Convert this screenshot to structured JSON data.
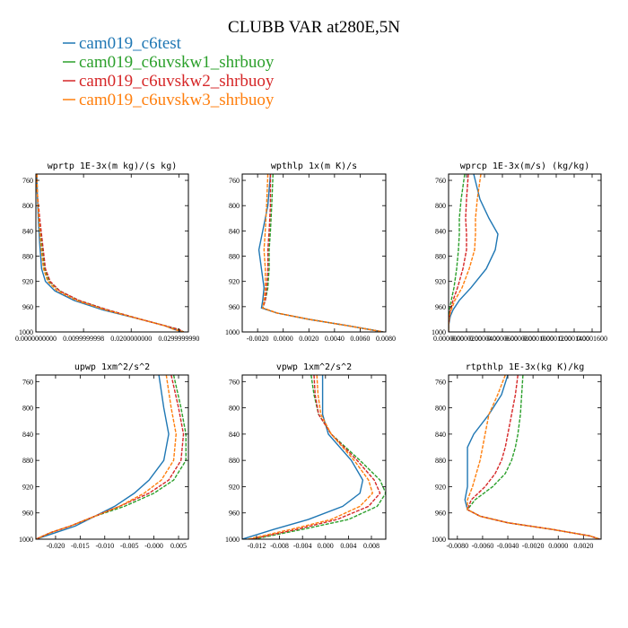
{
  "title": "CLUBB VAR at280E,5N",
  "legend": [
    {
      "name": "cam019_c6test",
      "color": "#1f77b4"
    },
    {
      "name": "cam019_c6uvskw1_shrbuoy",
      "color": "#2ca02c"
    },
    {
      "name": "cam019_c6uvskw2_shrbuoy",
      "color": "#d62728"
    },
    {
      "name": "cam019_c6uvskw3_shrbuoy",
      "color": "#ff7f0e"
    }
  ],
  "chart_data": [
    {
      "type": "line",
      "title": "wprtp  1E-3x(m kg)/(s kg)",
      "xlim": [
        0,
        0.032
      ],
      "ylim": [
        1000,
        750
      ],
      "x_ticks": [
        0.0,
        0.01,
        0.02,
        0.03
      ],
      "x_tick_labels": [
        "0.0000000000",
        "0.0099999998",
        "0.0200000000",
        "0.0299999990"
      ],
      "y_ticks": [
        760,
        800,
        840,
        880,
        920,
        960,
        1000
      ],
      "y_tick_labels": [
        "760",
        "800",
        "840",
        "880",
        "920",
        "960",
        "1000"
      ],
      "series": [
        {
          "name": "cam019_c6test",
          "y": [
            750,
            780,
            820,
            860,
            900,
            920,
            935,
            950,
            965,
            980,
            990,
            996,
            1000
          ],
          "x": [
            0.0002,
            0.0003,
            0.0005,
            0.0008,
            0.0012,
            0.002,
            0.004,
            0.008,
            0.014,
            0.022,
            0.027,
            0.029,
            0.031
          ]
        },
        {
          "name": "cam019_c6uvskw1_shrbuoy",
          "y": [
            750,
            780,
            820,
            860,
            900,
            920,
            935,
            950,
            965,
            980,
            990,
            996,
            1000
          ],
          "x": [
            0.0002,
            0.0003,
            0.0007,
            0.0012,
            0.0018,
            0.0028,
            0.005,
            0.009,
            0.015,
            0.022,
            0.027,
            0.03,
            0.031
          ]
        },
        {
          "name": "cam019_c6uvskw2_shrbuoy",
          "y": [
            750,
            780,
            820,
            860,
            900,
            920,
            935,
            950,
            965,
            980,
            990,
            996,
            1000
          ],
          "x": [
            0.0002,
            0.0003,
            0.0008,
            0.0014,
            0.002,
            0.003,
            0.005,
            0.009,
            0.015,
            0.022,
            0.027,
            0.03,
            0.031
          ]
        },
        {
          "name": "cam019_c6uvskw3_shrbuoy",
          "y": [
            750,
            780,
            820,
            860,
            900,
            920,
            935,
            950,
            965,
            980,
            990,
            996,
            1000
          ],
          "x": [
            0.0002,
            0.0003,
            0.0006,
            0.001,
            0.0016,
            0.0025,
            0.0045,
            0.0085,
            0.0145,
            0.022,
            0.027,
            0.029,
            0.031
          ]
        }
      ]
    },
    {
      "type": "line",
      "title": "wpthlp  1x(m K)/s",
      "xlim": [
        -0.0032,
        0.008
      ],
      "ylim": [
        1000,
        750
      ],
      "x_ticks": [
        -0.002,
        0.0,
        0.002,
        0.004,
        0.006,
        0.008
      ],
      "x_tick_labels": [
        "-0.0020",
        "0.0000",
        "0.0020",
        "0.0040",
        "0.0060",
        "0.0080"
      ],
      "y_ticks": [
        760,
        800,
        840,
        880,
        920,
        960,
        1000
      ],
      "y_tick_labels": [
        "760",
        "800",
        "840",
        "880",
        "920",
        "960",
        "1000"
      ],
      "series": [
        {
          "name": "cam019_c6test",
          "y": [
            750,
            800,
            840,
            870,
            900,
            930,
            950,
            962,
            970,
            980,
            990,
            1000
          ],
          "x": [
            -0.001,
            -0.0012,
            -0.0016,
            -0.0019,
            -0.0017,
            -0.0015,
            -0.0016,
            -0.0017,
            -0.0005,
            0.002,
            0.005,
            0.0078
          ]
        },
        {
          "name": "cam019_c6uvskw1_shrbuoy",
          "y": [
            750,
            800,
            840,
            870,
            900,
            930,
            950,
            962,
            970,
            980,
            990,
            1000
          ],
          "x": [
            -0.0008,
            -0.0009,
            -0.001,
            -0.0011,
            -0.0011,
            -0.0012,
            -0.0014,
            -0.0016,
            -0.0005,
            0.002,
            0.005,
            0.0078
          ]
        },
        {
          "name": "cam019_c6uvskw2_shrbuoy",
          "y": [
            750,
            800,
            840,
            870,
            900,
            930,
            950,
            962,
            970,
            980,
            990,
            1000
          ],
          "x": [
            -0.001,
            -0.001,
            -0.0011,
            -0.0012,
            -0.0012,
            -0.0013,
            -0.0014,
            -0.0016,
            -0.0005,
            0.002,
            0.005,
            0.0078
          ]
        },
        {
          "name": "cam019_c6uvskw3_shrbuoy",
          "y": [
            750,
            800,
            840,
            870,
            900,
            930,
            950,
            962,
            970,
            980,
            990,
            1000
          ],
          "x": [
            -0.0012,
            -0.0013,
            -0.0014,
            -0.0015,
            -0.0014,
            -0.0014,
            -0.0015,
            -0.0016,
            -0.0005,
            0.002,
            0.005,
            0.0078
          ]
        }
      ]
    },
    {
      "type": "line",
      "title": "wprcp  1E-3x(m/s) (kg/kg)",
      "xlim": [
        0,
        0.00017
      ],
      "ylim": [
        1000,
        750
      ],
      "x_ticks": [
        0.0,
        2e-05,
        4e-05,
        6e-05,
        8e-05,
        0.0001,
        0.00012,
        0.00014,
        0.00016
      ],
      "x_tick_labels": [
        "0.0000000",
        "0.0000200",
        "0.0000400",
        "0.0000600",
        "0.0000800",
        "0.0001000",
        "0.0001200",
        "0.0001400",
        "0.0001600"
      ],
      "y_ticks": [
        760,
        800,
        840,
        880,
        920,
        960,
        1000
      ],
      "y_tick_labels": [
        "760",
        "800",
        "840",
        "880",
        "920",
        "960",
        "1000"
      ],
      "series": [
        {
          "name": "cam019_c6test",
          "y": [
            750,
            790,
            820,
            845,
            870,
            900,
            930,
            950,
            965,
            975,
            990,
            1000
          ],
          "x": [
            2.8e-05,
            3.5e-05,
            4.5e-05,
            5.5e-05,
            5.2e-05,
            4.2e-05,
            2.5e-05,
            1.2e-05,
            5e-06,
            2e-06,
            0.0,
            0.0
          ]
        },
        {
          "name": "cam019_c6uvskw1_shrbuoy",
          "y": [
            750,
            790,
            820,
            845,
            870,
            900,
            930,
            950,
            965,
            975,
            990,
            1000
          ],
          "x": [
            1.8e-05,
            1.4e-05,
            1.2e-05,
            1.2e-05,
            1.1e-05,
            9e-06,
            6e-06,
            3e-06,
            1e-06,
            0.0,
            0.0,
            0.0
          ]
        },
        {
          "name": "cam019_c6uvskw2_shrbuoy",
          "y": [
            750,
            790,
            820,
            845,
            870,
            900,
            930,
            950,
            965,
            975,
            990,
            1000
          ],
          "x": [
            2.2e-05,
            2e-05,
            1.9e-05,
            2e-05,
            2e-05,
            1.6e-05,
            1e-05,
            5e-06,
            2e-06,
            1e-06,
            0.0,
            0.0
          ]
        },
        {
          "name": "cam019_c6uvskw3_shrbuoy",
          "y": [
            750,
            790,
            820,
            845,
            870,
            900,
            930,
            950,
            965,
            975,
            990,
            1000
          ],
          "x": [
            3.6e-05,
            3.2e-05,
            3e-05,
            3e-05,
            2.9e-05,
            2.3e-05,
            1.5e-05,
            7e-06,
            3e-06,
            1e-06,
            0.0,
            0.0
          ]
        }
      ]
    },
    {
      "type": "line",
      "title": "upwp   1xm^2/s^2",
      "xlim": [
        -0.024,
        0.007
      ],
      "ylim": [
        1000,
        750
      ],
      "x_ticks": [
        -0.02,
        -0.015,
        -0.01,
        -0.005,
        0.0,
        0.005
      ],
      "x_tick_labels": [
        "-0.020",
        "-0.015",
        "-0.010",
        "-0.005",
        "-0.000",
        "0.005"
      ],
      "y_ticks": [
        760,
        800,
        840,
        880,
        920,
        960,
        1000
      ],
      "y_tick_labels": [
        "760",
        "800",
        "840",
        "880",
        "920",
        "960",
        "1000"
      ],
      "series": [
        {
          "name": "cam019_c6test",
          "y": [
            750,
            800,
            840,
            880,
            910,
            930,
            950,
            965,
            980,
            990,
            1000
          ],
          "x": [
            0.001,
            0.002,
            0.003,
            0.002,
            -0.001,
            -0.004,
            -0.008,
            -0.012,
            -0.016,
            -0.02,
            -0.024
          ]
        },
        {
          "name": "cam019_c6uvskw1_shrbuoy",
          "y": [
            750,
            800,
            840,
            880,
            910,
            930,
            950,
            965,
            980,
            990,
            1000
          ],
          "x": [
            0.004,
            0.0055,
            0.0065,
            0.0065,
            0.004,
            0.0,
            -0.006,
            -0.012,
            -0.017,
            -0.021,
            -0.024
          ]
        },
        {
          "name": "cam019_c6uvskw2_shrbuoy",
          "y": [
            750,
            800,
            840,
            880,
            910,
            930,
            950,
            965,
            980,
            990,
            1000
          ],
          "x": [
            0.0035,
            0.005,
            0.006,
            0.0055,
            0.003,
            -0.001,
            -0.007,
            -0.012,
            -0.017,
            -0.021,
            -0.024
          ]
        },
        {
          "name": "cam019_c6uvskw3_shrbuoy",
          "y": [
            750,
            800,
            840,
            880,
            910,
            930,
            950,
            965,
            980,
            990,
            1000
          ],
          "x": [
            0.0025,
            0.0035,
            0.0045,
            0.004,
            0.0015,
            -0.002,
            -0.007,
            -0.012,
            -0.017,
            -0.021,
            -0.024
          ]
        }
      ]
    },
    {
      "type": "line",
      "title": "vpwp   1xm^2/s^2",
      "xlim": [
        -0.0145,
        0.0105
      ],
      "ylim": [
        1000,
        750
      ],
      "x_ticks": [
        -0.012,
        -0.008,
        -0.004,
        0.0,
        0.004,
        0.008
      ],
      "x_tick_labels": [
        "-0.012",
        "-0.008",
        "-0.004",
        "0.000",
        "0.004",
        "0.008"
      ],
      "y_ticks": [
        760,
        800,
        840,
        880,
        920,
        960,
        1000
      ],
      "y_tick_labels": [
        "760",
        "800",
        "840",
        "880",
        "920",
        "960",
        "1000"
      ],
      "series": [
        {
          "name": "cam019_c6test",
          "y": [
            750,
            780,
            810,
            840,
            880,
            910,
            930,
            950,
            970,
            985,
            1000
          ],
          "x": [
            -0.0005,
            -0.0005,
            -0.0005,
            0.0005,
            0.0045,
            0.0065,
            0.006,
            0.003,
            -0.003,
            -0.009,
            -0.0145
          ]
        },
        {
          "name": "cam019_c6uvskw1_shrbuoy",
          "y": [
            750,
            780,
            810,
            840,
            880,
            910,
            930,
            950,
            970,
            985,
            1000
          ],
          "x": [
            -0.0025,
            -0.002,
            -0.0012,
            0.001,
            0.006,
            0.0095,
            0.0105,
            0.009,
            0.004,
            -0.004,
            -0.0125
          ]
        },
        {
          "name": "cam019_c6uvskw2_shrbuoy",
          "y": [
            750,
            780,
            810,
            840,
            880,
            910,
            930,
            950,
            970,
            985,
            1000
          ],
          "x": [
            -0.002,
            -0.0018,
            -0.0012,
            0.001,
            0.0055,
            0.0085,
            0.0095,
            0.0075,
            0.002,
            -0.005,
            -0.013
          ]
        },
        {
          "name": "cam019_c6uvskw3_shrbuoy",
          "y": [
            750,
            780,
            810,
            840,
            880,
            910,
            930,
            950,
            970,
            985,
            1000
          ],
          "x": [
            -0.0015,
            -0.0013,
            -0.0008,
            0.001,
            0.005,
            0.0075,
            0.0082,
            0.006,
            0.001,
            -0.006,
            -0.0135
          ]
        }
      ]
    },
    {
      "type": "line",
      "title": "rtpthlp   1E-3x(kg K)/kg",
      "xlim": [
        -0.0087,
        0.0034
      ],
      "ylim": [
        1000,
        750
      ],
      "x_ticks": [
        -0.008,
        -0.006,
        -0.004,
        -0.002,
        0.0,
        0.002
      ],
      "x_tick_labels": [
        "-0.0080",
        "-0.0060",
        "-0.0040",
        "-0.0020",
        "0.0000",
        "0.0020"
      ],
      "y_ticks": [
        760,
        800,
        840,
        880,
        920,
        960,
        1000
      ],
      "y_tick_labels": [
        "760",
        "800",
        "840",
        "880",
        "920",
        "960",
        "1000"
      ],
      "series": [
        {
          "name": "cam019_c6test",
          "y": [
            750,
            780,
            810,
            840,
            860,
            880,
            900,
            920,
            940,
            955,
            965,
            975,
            985,
            995,
            1000
          ],
          "x": [
            -0.004,
            -0.0045,
            -0.0055,
            -0.0067,
            -0.0072,
            -0.0072,
            -0.0072,
            -0.0072,
            -0.0074,
            -0.0072,
            -0.0062,
            -0.004,
            -0.0005,
            0.0025,
            0.0033
          ]
        },
        {
          "name": "cam019_c6uvskw1_shrbuoy",
          "y": [
            750,
            780,
            810,
            840,
            860,
            880,
            900,
            920,
            940,
            955,
            965,
            975,
            985,
            995,
            1000
          ],
          "x": [
            -0.0028,
            -0.0029,
            -0.003,
            -0.0032,
            -0.0034,
            -0.0037,
            -0.0042,
            -0.0052,
            -0.0066,
            -0.0072,
            -0.0062,
            -0.004,
            -0.0005,
            0.0025,
            0.0033
          ]
        },
        {
          "name": "cam019_c6uvskw2_shrbuoy",
          "y": [
            750,
            780,
            810,
            840,
            860,
            880,
            900,
            920,
            940,
            955,
            965,
            975,
            985,
            995,
            1000
          ],
          "x": [
            -0.0032,
            -0.0034,
            -0.0037,
            -0.004,
            -0.0042,
            -0.0045,
            -0.005,
            -0.0058,
            -0.0069,
            -0.0072,
            -0.0062,
            -0.004,
            -0.0005,
            0.0025,
            0.0033
          ]
        },
        {
          "name": "cam019_c6uvskw3_shrbuoy",
          "y": [
            750,
            780,
            810,
            840,
            860,
            880,
            900,
            920,
            940,
            955,
            965,
            975,
            985,
            995,
            1000
          ],
          "x": [
            -0.0042,
            -0.0048,
            -0.0055,
            -0.0058,
            -0.006,
            -0.0062,
            -0.0065,
            -0.0068,
            -0.0072,
            -0.0072,
            -0.0062,
            -0.004,
            -0.0005,
            0.0025,
            0.0033
          ]
        }
      ]
    }
  ]
}
